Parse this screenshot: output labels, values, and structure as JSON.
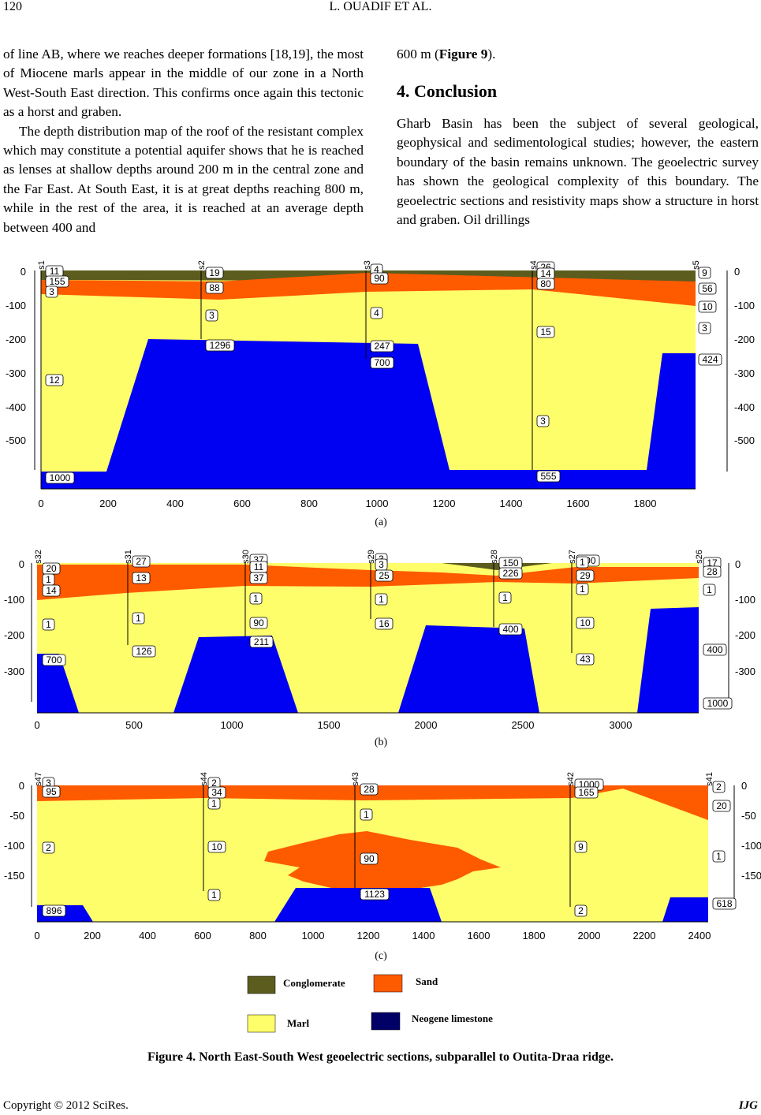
{
  "header": {
    "page_number": "120",
    "authors": "L. OUADIF   ET   AL."
  },
  "left_column": [
    "of line AB, where we reaches deeper formations [18,19], the most of Miocene marls appear in the middle of our zone in a North West-South East direction. This confirms once again this tectonic as a horst and graben.",
    "The depth distribution map of the roof of the resistant complex which may constitute a potential aquifer shows that he is reached as lenses at shallow depths around 200 m in the central zone and the Far East. At South East, it is at great depths reaching 800 m, while in the rest of the area, it is reached at an average depth between 400 and"
  ],
  "right_column": {
    "continuation_pre": "600 m (",
    "continuation_ref": "Figure 9",
    "continuation_post": ").",
    "heading": "4. Conclusion",
    "paragraph": "Gharb Basin has been the subject of several geological, geophysical and sedimentological studies; however, the eastern boundary of the basin remains unknown. The geoelectric survey has shown the geological complexity of this boundary. The geoelectric sections and resistivity maps show a structure in horst and graben. Oil drillings"
  },
  "colors": {
    "conglomerate": "#5c5c1e",
    "sand": "#fe5a00",
    "marl": "#fefe6a",
    "limestone": "#0000f2",
    "legend_limestone": "#000066"
  },
  "panels": [
    {
      "id": "a",
      "label": "(a)",
      "stations": [
        "s1",
        "s2",
        "s3",
        "s4",
        "s5"
      ],
      "x_ticks": [
        "0",
        "200",
        "400",
        "600",
        "800",
        "1000",
        "1200",
        "1400",
        "1600",
        "1800"
      ],
      "y_ticks_left": [
        "0",
        "-100",
        "-200",
        "-300",
        "-400",
        "-500"
      ],
      "y_ticks_right": [
        "0",
        "-100",
        "-200",
        "-300",
        "-400",
        "-500"
      ],
      "labels": [
        "11",
        "155",
        "3",
        "19",
        "88",
        "3",
        "1296",
        "4",
        "90",
        "4",
        "247",
        "700",
        "26",
        "14",
        "80",
        "15",
        "3",
        "555",
        "9",
        "56",
        "10",
        "3",
        "424",
        "12",
        "1000"
      ]
    },
    {
      "id": "b",
      "label": "(b)",
      "stations": [
        "s32",
        "s31",
        "s30",
        "s29",
        "s28",
        "s27",
        "s26"
      ],
      "x_ticks": [
        "0",
        "500",
        "1000",
        "1500",
        "2000",
        "2500",
        "3000"
      ],
      "y_ticks_left": [
        "0",
        "-100",
        "-200",
        "-300"
      ],
      "y_ticks_right": [
        "0",
        "-100",
        "-200",
        "-300"
      ],
      "labels": [
        "20",
        "1",
        "14",
        "1",
        "700",
        "27",
        "13",
        "1",
        "126",
        "37",
        "11",
        "37",
        "1",
        "90",
        "211",
        "3",
        "3",
        "25",
        "1",
        "16",
        "150",
        "226",
        "1",
        "400",
        "200",
        "1",
        "29",
        "1",
        "10",
        "43",
        "17",
        "28",
        "1",
        "400",
        "1000"
      ]
    },
    {
      "id": "c",
      "label": "(c)",
      "stations": [
        "s47",
        "s44",
        "s43",
        "s42",
        "s41"
      ],
      "x_ticks": [
        "0",
        "200",
        "400",
        "600",
        "800",
        "1000",
        "1200",
        "1400",
        "1600",
        "1800",
        "2000",
        "2200",
        "2400"
      ],
      "y_ticks_left": [
        "0",
        "-50",
        "-100",
        "-150"
      ],
      "y_ticks_right": [
        "0",
        "-50",
        "-100",
        "-150"
      ],
      "labels": [
        "3",
        "95",
        "2",
        "896",
        "2",
        "34",
        "1",
        "10",
        "1",
        "28",
        "1",
        "90",
        "1123",
        "1000",
        "165",
        "9",
        "2",
        "2",
        "20",
        "1",
        "618"
      ]
    }
  ],
  "legend": {
    "conglomerate": "Conglomerate",
    "sand": "Sand",
    "marl": "Marl",
    "limestone": "Neogene limestone"
  },
  "caption": "Figure 4. North East-South West geoelectric sections, subparallel to Outita-Draa ridge.",
  "footer": {
    "copyright": "Copyright © 2012 SciRes.",
    "journal": "IJG"
  }
}
